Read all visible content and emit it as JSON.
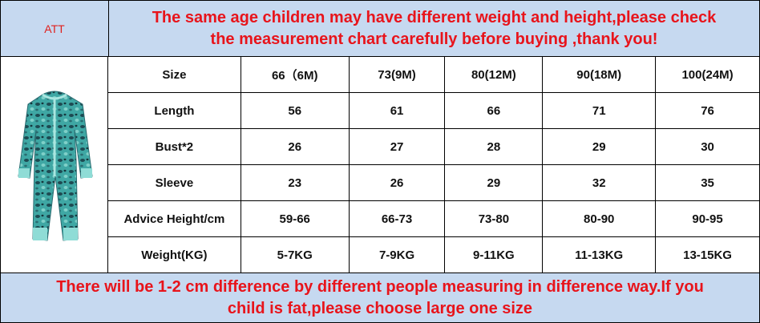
{
  "header": {
    "left": "ATT",
    "title_lines": [
      "The same age children may have different weight and height,please check",
      "the measurement chart carefully before buying ,thank you!"
    ]
  },
  "table": {
    "rows": [
      [
        "Size",
        "66（6M)",
        "73(9M)",
        "80(12M)",
        "90(18M)",
        "100(24M)"
      ],
      [
        "Length",
        "56",
        "61",
        "66",
        "71",
        "76"
      ],
      [
        "Bust*2",
        "26",
        "27",
        "28",
        "29",
        "30"
      ],
      [
        "Sleeve",
        "23",
        "26",
        "29",
        "32",
        "35"
      ],
      [
        "Advice Height/cm",
        "59-66",
        "66-73",
        "73-80",
        "80-90",
        "90-95"
      ],
      [
        "Weight(KG)",
        "5-7KG",
        "7-9KG",
        "9-11KG",
        "11-13KG",
        "13-15KG"
      ]
    ]
  },
  "footer": {
    "lines": [
      "There will be 1-2 cm difference by different people measuring in difference way.If you",
      "child is fat,please choose large one size"
    ]
  }
}
